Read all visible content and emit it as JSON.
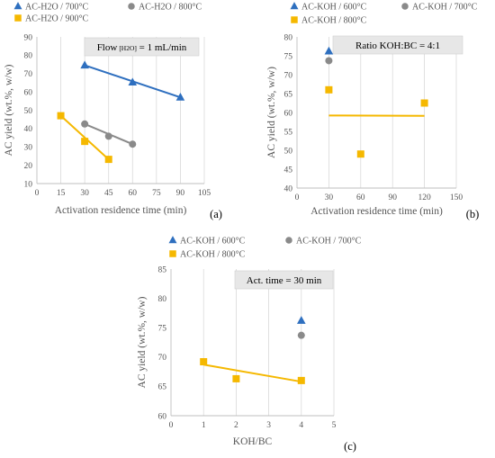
{
  "chart_data": [
    {
      "type": "scatter",
      "panel_label": "(a)",
      "xlabel": "Activation residence time (min)",
      "ylabel": "AC yield (wt.%, w/w)",
      "xlim": [
        0,
        105
      ],
      "ylim": [
        10,
        90
      ],
      "x_ticks": [
        "0",
        "15",
        "30",
        "45",
        "60",
        "75",
        "90",
        "105"
      ],
      "y_ticks": [
        "10",
        "20",
        "30",
        "40",
        "50",
        "60",
        "70",
        "80",
        "90"
      ],
      "grid": "vertical",
      "legend": "top",
      "annotation": {
        "text": "Flow",
        "sub": "[H2O]",
        "tail": " = 1 mL/min"
      },
      "series": [
        {
          "name": "AC-H2O / 700°C",
          "marker": "triangle",
          "color": "#2e6fbf",
          "x": [
            30,
            60,
            90
          ],
          "y": [
            74.5,
            65.2,
            57.0
          ],
          "line": {
            "x": [
              30,
              90
            ],
            "y": [
              74.5,
              57.0
            ]
          }
        },
        {
          "name": "AC-H2O / 800°C",
          "marker": "circle",
          "color": "#8a8a8a",
          "x": [
            30,
            45,
            60
          ],
          "y": [
            42.5,
            35.8,
            31.5
          ],
          "line": {
            "x": [
              30,
              60
            ],
            "y": [
              42.5,
              31.5
            ]
          }
        },
        {
          "name": "AC-H2O / 900°C",
          "marker": "square",
          "color": "#f5b800",
          "x": [
            15,
            30,
            45
          ],
          "y": [
            47.0,
            33.0,
            23.2
          ],
          "line": {
            "x": [
              15,
              45
            ],
            "y": [
              47.0,
              23.2
            ]
          }
        }
      ]
    },
    {
      "type": "scatter",
      "panel_label": "(b)",
      "xlabel": "Activation residence time (min)",
      "ylabel": "AC yield (wt.%, w/w)",
      "xlim": [
        0,
        150
      ],
      "ylim": [
        40,
        80
      ],
      "x_ticks": [
        "0",
        "30",
        "60",
        "90",
        "120",
        "150"
      ],
      "y_ticks": [
        "40",
        "45",
        "50",
        "55",
        "60",
        "65",
        "70",
        "75",
        "80"
      ],
      "grid": "vertical",
      "legend": "top",
      "annotation": {
        "text": "Ratio KOH:BC = 4:1",
        "sub": "",
        "tail": ""
      },
      "series": [
        {
          "name": "AC-KOH / 600°C",
          "marker": "triangle",
          "color": "#2e6fbf",
          "x": [
            30
          ],
          "y": [
            76.2
          ]
        },
        {
          "name": "AC-KOH / 700°C",
          "marker": "circle",
          "color": "#8a8a8a",
          "x": [
            30
          ],
          "y": [
            73.7
          ]
        },
        {
          "name": "AC-KOH / 800°C",
          "marker": "square",
          "color": "#f5b800",
          "x": [
            30,
            60,
            120
          ],
          "y": [
            66.0,
            49.0,
            62.5
          ],
          "line": {
            "x": [
              30,
              120
            ],
            "y": [
              59.2,
              59.1
            ]
          }
        }
      ]
    },
    {
      "type": "scatter",
      "panel_label": "(c)",
      "xlabel": "KOH/BC",
      "ylabel": "AC yield (wt.%, w/w)",
      "xlim": [
        0,
        5
      ],
      "ylim": [
        60,
        85
      ],
      "x_ticks": [
        "0",
        "1",
        "2",
        "3",
        "4",
        "5"
      ],
      "y_ticks": [
        "60",
        "65",
        "70",
        "75",
        "80",
        "85"
      ],
      "grid": "vertical",
      "legend": "top",
      "annotation": {
        "text": "Act. time = 30 min",
        "sub": "",
        "tail": ""
      },
      "series": [
        {
          "name": "AC-KOH / 600°C",
          "marker": "triangle",
          "color": "#2e6fbf",
          "x": [
            4
          ],
          "y": [
            76.2
          ]
        },
        {
          "name": "AC-KOH / 700°C",
          "marker": "circle",
          "color": "#8a8a8a",
          "x": [
            4
          ],
          "y": [
            73.7
          ]
        },
        {
          "name": "AC-KOH / 800°C",
          "marker": "square",
          "color": "#f5b800",
          "x": [
            1,
            2,
            4
          ],
          "y": [
            69.2,
            66.3,
            66.0
          ],
          "line": {
            "x": [
              1,
              4
            ],
            "y": [
              68.7,
              65.8
            ]
          }
        }
      ]
    }
  ]
}
